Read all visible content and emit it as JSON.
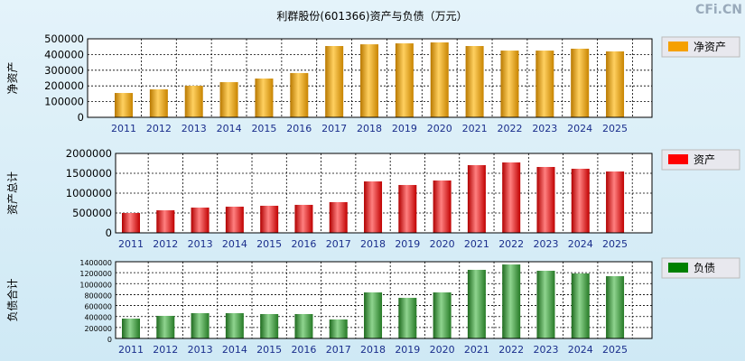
{
  "title": "利群股份(601366)资产与负债（万元）",
  "watermark": "CFi.CN",
  "chart_data": [
    {
      "type": "bar",
      "ylabel": "净资产",
      "legend": "净资产",
      "color": "#f5a000",
      "categories": [
        "2011",
        "2012",
        "2013",
        "2014",
        "2015",
        "2016",
        "2017",
        "2018",
        "2019",
        "2020",
        "2021",
        "2022",
        "2023",
        "2024",
        "2025"
      ],
      "values": [
        155000,
        178000,
        201000,
        224000,
        247000,
        282000,
        454000,
        465000,
        471000,
        477000,
        454000,
        425000,
        425000,
        437000,
        420000
      ],
      "ylim": [
        0,
        500000
      ],
      "yticks": [
        "0",
        "100000",
        "200000",
        "300000",
        "400000",
        "500000"
      ]
    },
    {
      "type": "bar",
      "ylabel": "资产总计",
      "legend": "资产",
      "color": "#ff0000",
      "categories": [
        "2011",
        "2012",
        "2013",
        "2014",
        "2015",
        "2016",
        "2017",
        "2018",
        "2019",
        "2020",
        "2021",
        "2022",
        "2023",
        "2024",
        "2025"
      ],
      "values": [
        500000,
        568000,
        636000,
        659000,
        682000,
        705000,
        773000,
        1295000,
        1205000,
        1318000,
        1705000,
        1773000,
        1659000,
        1614000,
        1545000
      ],
      "ylim": [
        0,
        2000000
      ],
      "yticks": [
        "0",
        "500000",
        "1000000",
        "1500000",
        "2000000"
      ]
    },
    {
      "type": "bar",
      "ylabel": "负债合计",
      "legend": "负债",
      "color": "#008000",
      "categories": [
        "2011",
        "2012",
        "2013",
        "2014",
        "2015",
        "2016",
        "2017",
        "2018",
        "2019",
        "2020",
        "2021",
        "2022",
        "2023",
        "2024",
        "2025"
      ],
      "values": [
        362000,
        412000,
        461000,
        461000,
        445000,
        445000,
        346000,
        840000,
        741000,
        840000,
        1252000,
        1350000,
        1235000,
        1186000,
        1136000
      ],
      "ylim": [
        0,
        1400000
      ],
      "yticks": [
        "0",
        "200000",
        "400000",
        "600000",
        "800000",
        "1000000",
        "1200000",
        "1400000"
      ]
    }
  ]
}
